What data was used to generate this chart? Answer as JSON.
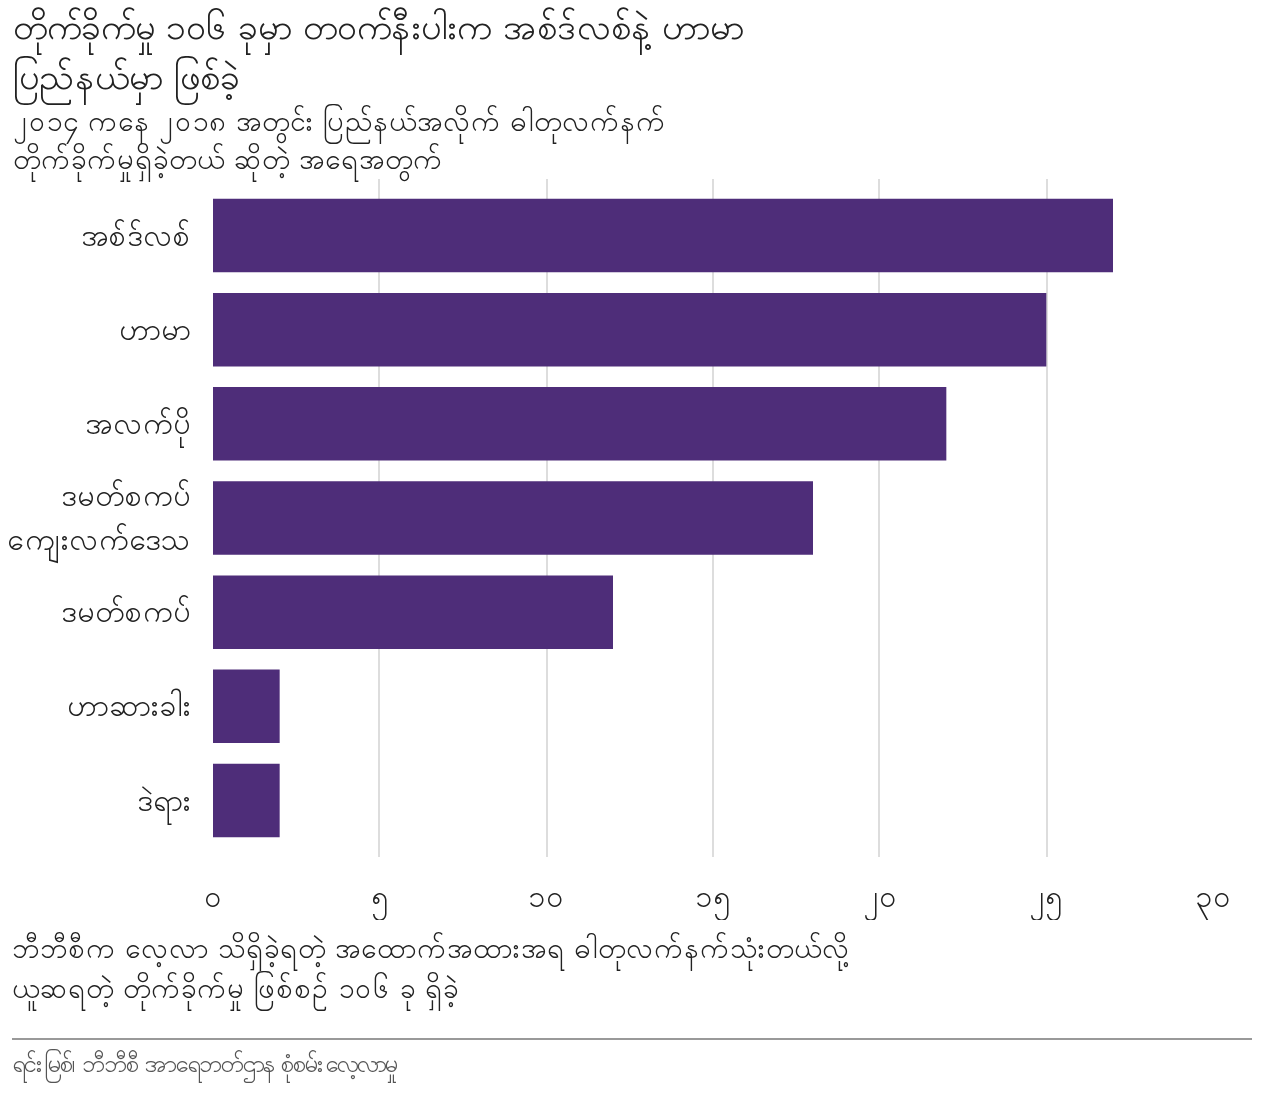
{
  "chart_data": {
    "type": "bar",
    "orientation": "horizontal",
    "title": "တိုက်ခိုက်မှု ၁၀၆ ခုမှာ တဝက်နီးပါးက အစ်ဒ်လစ်နဲ့ ဟာမာ ပြည်နယ်မှာ ဖြစ်ခဲ့",
    "subtitle": "၂၀၁၄ ကနေ ၂၀၁၈ အတွင်း ပြည်နယ်အလိုက် ဓါတုလက်နက် တိုက်ခိုက်မှုရှိခဲ့တယ် ဆိုတဲ့ အရေအတွက်",
    "categories": [
      "အစ်ဒ်လစ်",
      "ဟာမာ",
      "အလက်ပို",
      "ဒမတ်စကပ် ကျေးလက်ဒေသ",
      "ဒမတ်စကပ်",
      "ဟာဆားခါး",
      "ဒဲရား"
    ],
    "values": [
      27,
      25,
      22,
      18,
      12,
      2,
      2
    ],
    "color": "#4e2d79",
    "xlim": [
      0,
      30
    ],
    "xticks": [
      {
        "value": 0,
        "label": "၀"
      },
      {
        "value": 5,
        "label": "၅"
      },
      {
        "value": 10,
        "label": "၁၀"
      },
      {
        "value": 15,
        "label": "၁၅"
      },
      {
        "value": 20,
        "label": "၂၀"
      },
      {
        "value": 25,
        "label": "၂၅"
      },
      {
        "value": 30,
        "label": "၃၀"
      }
    ],
    "grid": "x",
    "annotations": [
      "ဘီဘီစီက လေ့လာ သိရှိခဲ့ရတဲ့ အထောက်အထားအရ ဓါတုလက်နက်သုံးတယ်လို့ ယူဆရတဲ့ တိုက်ခိုက်မှု ဖြစ်စဉ် ၁၀၆ ခု ရှိခဲ့",
      "ရင်းမြစ်၊ ဘီဘီစီ အာရေဘတ်ဌာန စုံစမ်းလေ့လာမှု"
    ]
  }
}
